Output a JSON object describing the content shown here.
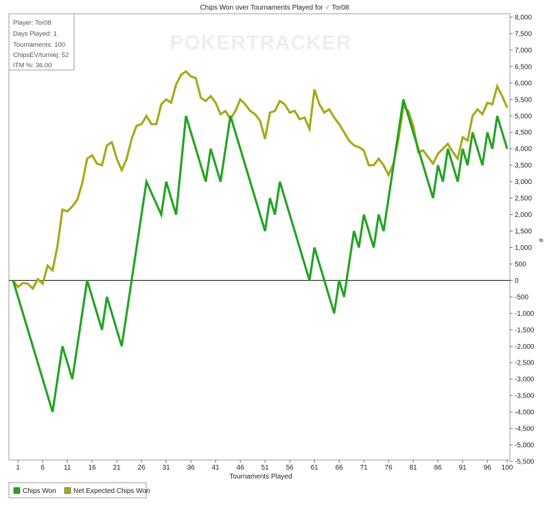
{
  "page": {
    "title_prefix": "Chips Won over Tournaments Played for",
    "player_name": "Tor08"
  },
  "watermark": {
    "text": "POKERTRACKER"
  },
  "stats_box": {
    "lines": [
      "Player: Tor08",
      "Days Played: 1",
      "Tournaments: 100",
      "ChipsEV/turniej: 52",
      "ITM %: 36.00"
    ]
  },
  "legend": {
    "items": [
      {
        "label": "Chips Won",
        "color": "#22a322"
      },
      {
        "label": "Net Expected Chips Won",
        "color": "#a8a81c"
      }
    ]
  },
  "colors": {
    "zero_line": "#000000",
    "frame": "#9a9a9a"
  },
  "chart_data": {
    "type": "line",
    "title": "Chips Won over Tournaments Played for Tor08",
    "xlabel": "Tournaments Played",
    "ylabel": "#",
    "xlim": [
      0,
      100
    ],
    "ylim": [
      -5500,
      8000
    ],
    "x_ticks": [
      1,
      6,
      11,
      16,
      21,
      26,
      31,
      36,
      41,
      46,
      51,
      56,
      61,
      66,
      71,
      76,
      81,
      86,
      91,
      96,
      100
    ],
    "y_ticks": [
      8000,
      7500,
      7000,
      6500,
      6000,
      5500,
      5000,
      4500,
      4000,
      3500,
      3000,
      2500,
      2000,
      1500,
      1000,
      500,
      0,
      -500,
      -1000,
      -1500,
      -2000,
      -2500,
      -3000,
      -3500,
      -4000,
      -4500,
      -5000,
      -5500
    ],
    "y_tick_labels": [
      "8,000",
      "7,500",
      "7,000",
      "6,500",
      "6,000",
      "5,500",
      "5,000",
      "4,500",
      "4,000",
      "3,500",
      "3,000",
      "2,500",
      "2,000",
      "1,500",
      "1,000",
      "500",
      "0",
      "-500",
      "-1,000",
      "-1,500",
      "-2,000",
      "-2,500",
      "-3,000",
      "-3,500",
      "-4,000",
      "-4,500",
      "-5,000",
      "-5,500"
    ],
    "series": [
      {
        "name": "Chips Won",
        "color": "#22a322",
        "x": [
          0,
          8,
          10,
          12,
          15,
          18,
          19,
          22,
          27,
          30,
          31,
          33,
          35,
          39,
          40,
          42,
          44,
          51,
          52,
          53,
          54,
          60,
          61,
          65,
          66,
          67,
          69,
          70,
          71,
          73,
          74,
          75,
          79,
          85,
          86,
          87,
          88,
          90,
          91,
          92,
          93,
          95,
          96,
          97,
          98,
          100
        ],
        "y": [
          0,
          -4000,
          -2000,
          -3000,
          0,
          -1500,
          -500,
          -2000,
          3000,
          2000,
          3000,
          2000,
          5000,
          3000,
          4000,
          3000,
          5000,
          1500,
          2500,
          2000,
          3000,
          0,
          1000,
          -1000,
          0,
          -500,
          1500,
          1000,
          2000,
          1000,
          2000,
          1500,
          5500,
          2500,
          3500,
          3000,
          4000,
          3000,
          4000,
          3500,
          4500,
          3500,
          4500,
          4000,
          5000,
          4000
        ]
      },
      {
        "name": "Net Expected Chips Won",
        "color": "#a8a81c",
        "x": [
          0,
          1,
          2,
          3,
          4,
          5,
          6,
          7,
          8,
          9,
          10,
          11,
          12,
          13,
          14,
          15,
          16,
          17,
          18,
          19,
          20,
          21,
          22,
          23,
          24,
          25,
          26,
          27,
          28,
          29,
          30,
          31,
          32,
          33,
          34,
          35,
          36,
          37,
          38,
          39,
          40,
          41,
          42,
          43,
          44,
          45,
          46,
          47,
          48,
          49,
          50,
          51,
          52,
          53,
          54,
          55,
          56,
          57,
          58,
          59,
          60,
          61,
          62,
          63,
          64,
          65,
          66,
          67,
          68,
          69,
          70,
          71,
          72,
          73,
          74,
          75,
          76,
          77,
          78,
          79,
          80,
          81,
          82,
          83,
          84,
          85,
          86,
          87,
          88,
          89,
          90,
          91,
          92,
          93,
          94,
          95,
          96,
          97,
          98,
          99,
          100
        ],
        "y": [
          0,
          -200,
          -80,
          -100,
          -250,
          40,
          -100,
          450,
          300,
          1050,
          2150,
          2100,
          2250,
          2450,
          2950,
          3700,
          3800,
          3550,
          3500,
          4100,
          4200,
          3700,
          3350,
          3700,
          4300,
          4700,
          4750,
          5000,
          4750,
          4750,
          5350,
          5500,
          5400,
          5950,
          6250,
          6350,
          6200,
          6150,
          5550,
          5450,
          5600,
          5400,
          5050,
          5150,
          4900,
          5150,
          5500,
          5350,
          5150,
          5050,
          4850,
          4300,
          5100,
          5150,
          5450,
          5350,
          5100,
          5150,
          4900,
          4950,
          4600,
          5800,
          5350,
          5100,
          5200,
          4950,
          4750,
          4500,
          4250,
          4100,
          4050,
          3950,
          3500,
          3500,
          3700,
          3500,
          3200,
          3550,
          4300,
          5300,
          5150,
          4700,
          3900,
          3950,
          3750,
          3550,
          3850,
          4000,
          4150,
          3900,
          3700,
          4350,
          4250,
          5000,
          5200,
          5050,
          5400,
          5350,
          5900,
          5600,
          5250
        ]
      }
    ],
    "grid": false,
    "legend_position": "bottom-left"
  }
}
